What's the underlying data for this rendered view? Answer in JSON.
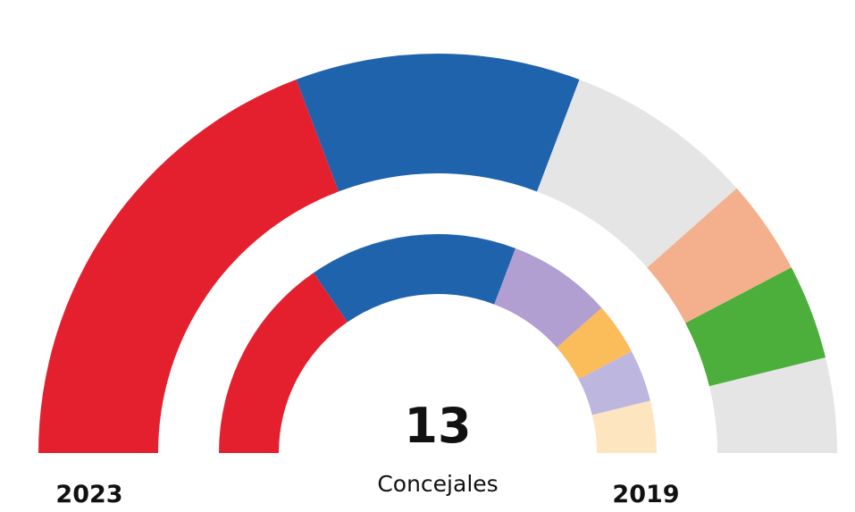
{
  "chart_data": {
    "type": "semicircle",
    "center_value": 13,
    "center_label": "Concejales",
    "rings": [
      {
        "name": "2023",
        "values": [
          5,
          3,
          2,
          1,
          1,
          1
        ],
        "colors": [
          "#e4202f",
          "#1f63ad",
          "#e5e5e5",
          "#f4b08c",
          "#4cae3b",
          "#e5e5e5"
        ]
      },
      {
        "name": "2019",
        "values": [
          4,
          4,
          2,
          1,
          1,
          1
        ],
        "colors": [
          "#e4202f",
          "#1f63ad",
          "#b09fd0",
          "#fbbc5a",
          "#bdb7e0",
          "#fde5c0"
        ]
      }
    ]
  }
}
